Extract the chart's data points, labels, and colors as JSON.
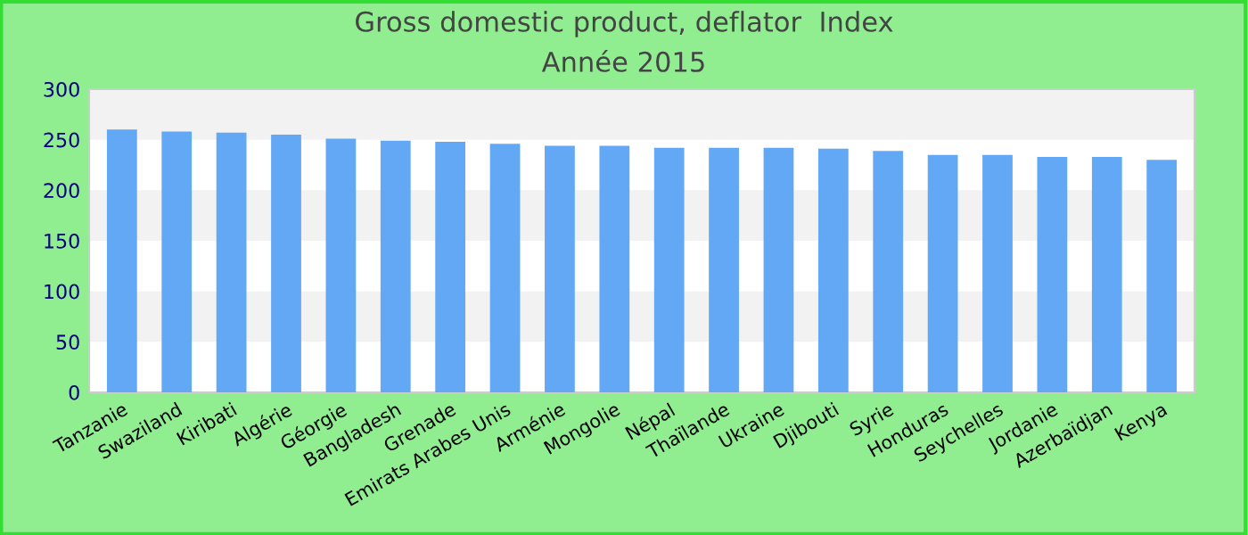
{
  "chart_data": {
    "type": "bar",
    "title": "Gross domestic product, deflator  Index",
    "subtitle": "Année 2015",
    "categories": [
      "Tanzanie",
      "Swaziland",
      "Kiribati",
      "Algérie",
      "Géorgie",
      "Bangladesh",
      "Grenade",
      "Emirats Arabes Unis",
      "Arménie",
      "Mongolie",
      "Népal",
      "Thaïlande",
      "Ukraine",
      "Djibouti",
      "Syrie",
      "Honduras",
      "Seychelles",
      "Jordanie",
      "Azerbaïdjan",
      "Kenya"
    ],
    "values": [
      260,
      258,
      257,
      255,
      251,
      249,
      248,
      246,
      244,
      244,
      242,
      242,
      242,
      241,
      239,
      235,
      235,
      233,
      233,
      230
    ],
    "color": "#62a8f4",
    "ylim": [
      0,
      300
    ],
    "yticks": [
      0,
      50,
      100,
      150,
      200,
      250,
      300
    ],
    "bands": [
      {
        "axis": "y",
        "from": 50,
        "to": 100,
        "color": "#f2f2f2"
      },
      {
        "axis": "y",
        "from": 150,
        "to": 200,
        "color": "#f2f2f2"
      },
      {
        "axis": "y",
        "from": 250,
        "to": 300,
        "color": "#f2f2f2"
      }
    ],
    "legend": false
  }
}
